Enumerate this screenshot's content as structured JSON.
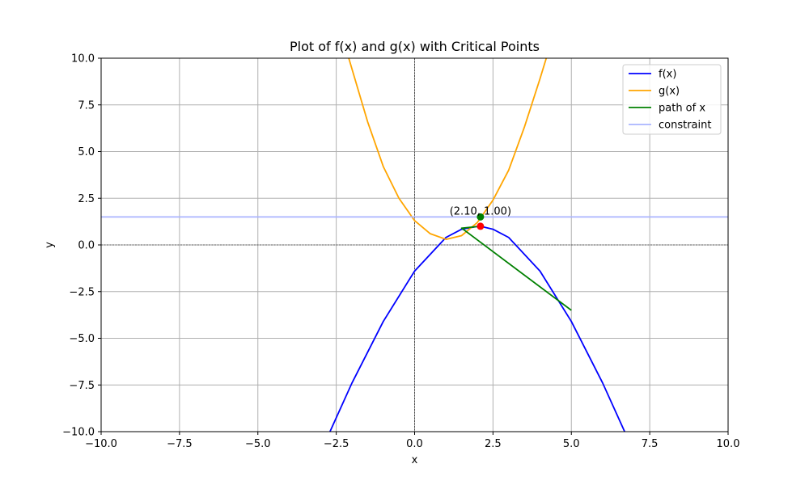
{
  "chart_data": {
    "type": "line",
    "title": "Plot of f(x) and g(x) with Critical Points",
    "xlabel": "x",
    "ylabel": "y",
    "xlim": [
      -10,
      10
    ],
    "ylim": [
      -10,
      10
    ],
    "xticks": [
      -10,
      -7.5,
      -5,
      -2.5,
      0,
      2.5,
      5,
      7.5,
      10
    ],
    "yticks": [
      -10,
      -7.5,
      -5,
      -2.5,
      0,
      2.5,
      5,
      7.5,
      10
    ],
    "xtick_labels": [
      "−10.0",
      "−7.5",
      "−5.0",
      "−2.5",
      "0.0",
      "2.5",
      "5.0",
      "7.5",
      "10.0"
    ],
    "ytick_labels": [
      "−10.0",
      "−7.5",
      "−5.0",
      "−2.5",
      "0.0",
      "2.5",
      "5.0",
      "7.5",
      "10.0"
    ],
    "grid": true,
    "legend_position": "top-right",
    "series": [
      {
        "name": "f(x)",
        "color": "#0000ff",
        "x": [
          -2.7,
          -2,
          -1,
          0,
          1,
          1.5,
          2,
          2.1,
          2.5,
          3,
          4,
          5,
          6,
          6.7
        ],
        "y": [
          -10,
          -7.4,
          -4.1,
          -1.4,
          0.4,
          0.84,
          0.99,
          1.0,
          0.84,
          0.4,
          -1.4,
          -4.1,
          -7.4,
          -10
        ]
      },
      {
        "name": "g(x)",
        "color": "#ffa500",
        "x": [
          -2.1,
          -1.5,
          -1,
          -0.5,
          0,
          0.5,
          1,
          1.5,
          2,
          2.5,
          3,
          3.5,
          4,
          4.2
        ],
        "y": [
          10,
          6.6,
          4.2,
          2.5,
          1.3,
          0.6,
          0.3,
          0.5,
          1.2,
          2.4,
          4.0,
          6.3,
          8.9,
          10
        ]
      },
      {
        "name": "path of x",
        "color": "#008000",
        "x": [
          5,
          1.5,
          2.1
        ],
        "y": [
          -3.5,
          0.9,
          1.0
        ]
      },
      {
        "name": "constraint",
        "color": "#aab4ff",
        "x": [
          -10,
          10
        ],
        "y": [
          1.5,
          1.5
        ]
      }
    ],
    "points": [
      {
        "name": "constraint-point",
        "x": 2.1,
        "y": 1.5,
        "color": "#008000"
      },
      {
        "name": "critical-point",
        "x": 2.1,
        "y": 1.0,
        "color": "#ff0000"
      }
    ],
    "annotations": [
      {
        "text": "(2.10, 1.00)",
        "x": 2.1,
        "y": 1.5
      }
    ]
  }
}
